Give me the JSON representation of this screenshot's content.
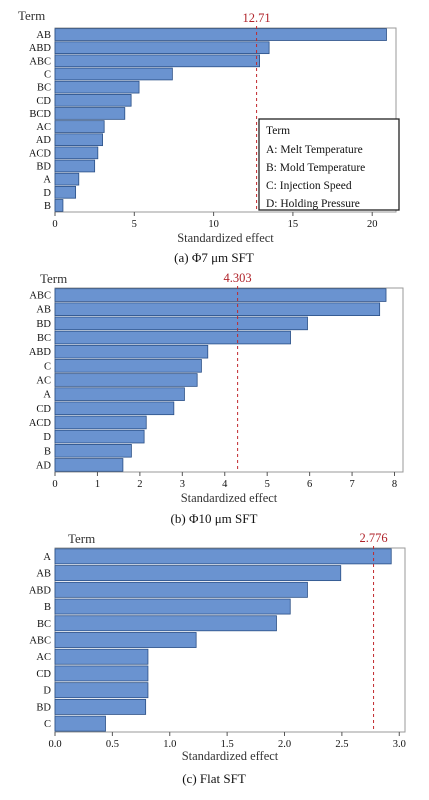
{
  "chart_data": [
    {
      "type": "bar",
      "orientation": "horizontal",
      "term_header": "Term",
      "categories": [
        "AB",
        "ABD",
        "ABC",
        "C",
        "BC",
        "CD",
        "BCD",
        "AC",
        "AD",
        "ACD",
        "BD",
        "A",
        "D",
        "B"
      ],
      "values": [
        20.9,
        13.5,
        12.9,
        7.4,
        5.3,
        4.8,
        4.4,
        3.1,
        3.0,
        2.7,
        2.5,
        1.5,
        1.3,
        0.5
      ],
      "reference_value": 12.71,
      "reference_label": "12.71",
      "xlabel": "Standardized effect",
      "xlim": [
        0,
        21.5
      ],
      "xticks": [
        0,
        5,
        10,
        15,
        20
      ],
      "xtick_labels": [
        "0",
        "5",
        "10",
        "15",
        "20"
      ],
      "caption": "(a) Φ7 μm SFT",
      "legend": {
        "title": "Term",
        "entries": [
          "A: Melt Temperature",
          "B: Mold Temperature",
          "C: Injection Speed",
          "D: Holding Pressure"
        ]
      }
    },
    {
      "type": "bar",
      "orientation": "horizontal",
      "term_header": "Term",
      "categories": [
        "ABC",
        "AB",
        "BD",
        "BC",
        "ABD",
        "C",
        "AC",
        "A",
        "CD",
        "ACD",
        "D",
        "B",
        "AD"
      ],
      "values": [
        7.8,
        7.65,
        5.95,
        5.55,
        3.6,
        3.45,
        3.35,
        3.05,
        2.8,
        2.15,
        2.1,
        1.8,
        1.6
      ],
      "reference_value": 4.303,
      "reference_label": "4.303",
      "xlabel": "Standardized effect",
      "xlim": [
        0,
        8.2
      ],
      "xticks": [
        0,
        1,
        2,
        3,
        4,
        5,
        6,
        7,
        8
      ],
      "xtick_labels": [
        "0",
        "1",
        "2",
        "3",
        "4",
        "5",
        "6",
        "7",
        "8"
      ],
      "caption": "(b) Φ10 μm SFT"
    },
    {
      "type": "bar",
      "orientation": "horizontal",
      "term_header": "Term",
      "categories": [
        "A",
        "AB",
        "ABD",
        "B",
        "BC",
        "ABC",
        "AC",
        "CD",
        "D",
        "BD",
        "C"
      ],
      "values": [
        2.93,
        2.49,
        2.2,
        2.05,
        1.93,
        1.23,
        0.81,
        0.81,
        0.81,
        0.79,
        0.44
      ],
      "reference_value": 2.776,
      "reference_label": "2.776",
      "xlabel": "Standardized effect",
      "xlim": [
        0,
        3.05
      ],
      "xticks": [
        0,
        0.5,
        1,
        1.5,
        2,
        2.5,
        3
      ],
      "xtick_labels": [
        "0.0",
        "0.5",
        "1.0",
        "1.5",
        "2.0",
        "2.5",
        "3.0"
      ],
      "caption": "(c) Flat SFT"
    }
  ]
}
